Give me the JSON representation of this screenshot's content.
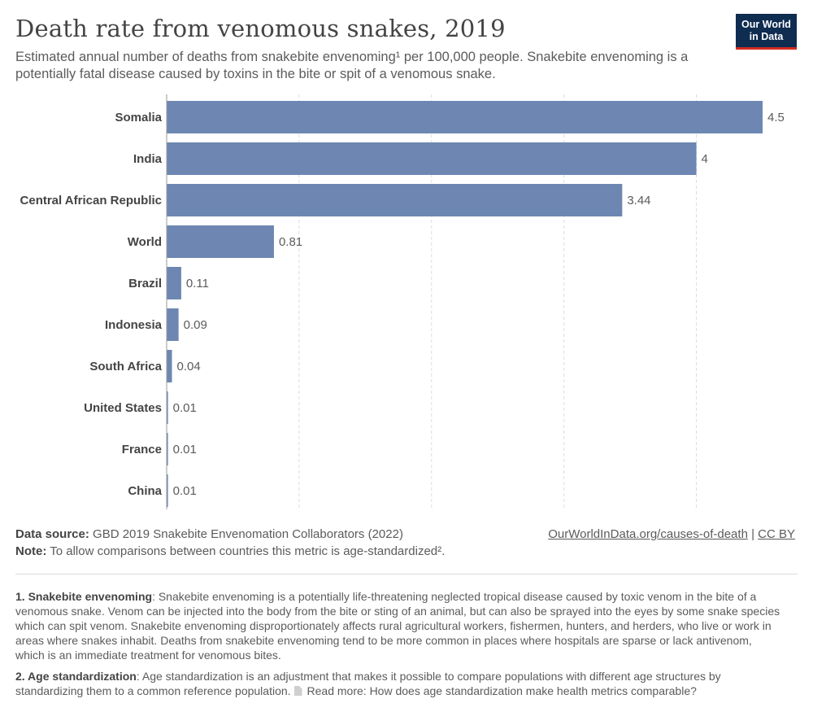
{
  "header": {
    "title": "Death rate from venomous snakes, 2019",
    "subtitle": "Estimated annual number of deaths from snakebite envenoming¹ per 100,000 people. Snakebite envenoming is a potentially fatal disease caused by toxins in the bite or spit of a venomous snake."
  },
  "logo": {
    "line1": "Our World",
    "line2": "in Data",
    "bg_color": "#0f2c51",
    "accent_color": "#d42b21"
  },
  "chart_data": {
    "type": "bar",
    "orientation": "horizontal",
    "categories": [
      "Somalia",
      "India",
      "Central African Republic",
      "World",
      "Brazil",
      "Indonesia",
      "South Africa",
      "United States",
      "France",
      "China"
    ],
    "values": [
      4.5,
      4,
      3.44,
      0.81,
      0.11,
      0.09,
      0.04,
      0.01,
      0.01,
      0.01
    ],
    "value_labels": [
      "4.5",
      "4",
      "3.44",
      "0.81",
      "0.11",
      "0.09",
      "0.04",
      "0.01",
      "0.01",
      "0.01"
    ],
    "xlim": [
      0,
      4.5
    ],
    "gridlines_at": [
      1,
      2,
      3,
      4
    ],
    "grid": true,
    "bar_color": "#6d87b2"
  },
  "footer": {
    "source_label": "Data source:",
    "source_text": "GBD 2019 Snakebite Envenomation Collaborators (2022)",
    "note_label": "Note:",
    "note_text": "To allow comparisons between countries this metric is age-standardized².",
    "credit_link": "OurWorldInData.org/causes-of-death",
    "credit_sep": " | ",
    "credit_license": "CC BY"
  },
  "footnotes": {
    "fn1_label": "1. Snakebite envenoming",
    "fn1_text": ": Snakebite envenoming is a potentially life-threatening neglected tropical disease caused by toxic venom in the bite of a venomous snake. Venom can be injected into the body from the bite or sting of an animal, but can also be sprayed into the eyes by some snake species which can spit venom. Snakebite envenoming disproportionately affects rural agricultural workers, fishermen, hunters, and herders, who live or work in areas where snakes inhabit. Deaths from snakebite envenoming tend to be more common in places where hospitals are sparse or lack antivenom, which is an immediate treatment for venomous bites.",
    "fn2_label": "2. Age standardization",
    "fn2_text": ": Age standardization is an adjustment that makes it possible to compare populations with different age structures by standardizing them to a common reference population.",
    "fn2_more": "Read more: How does age standardization make health metrics comparable?"
  }
}
